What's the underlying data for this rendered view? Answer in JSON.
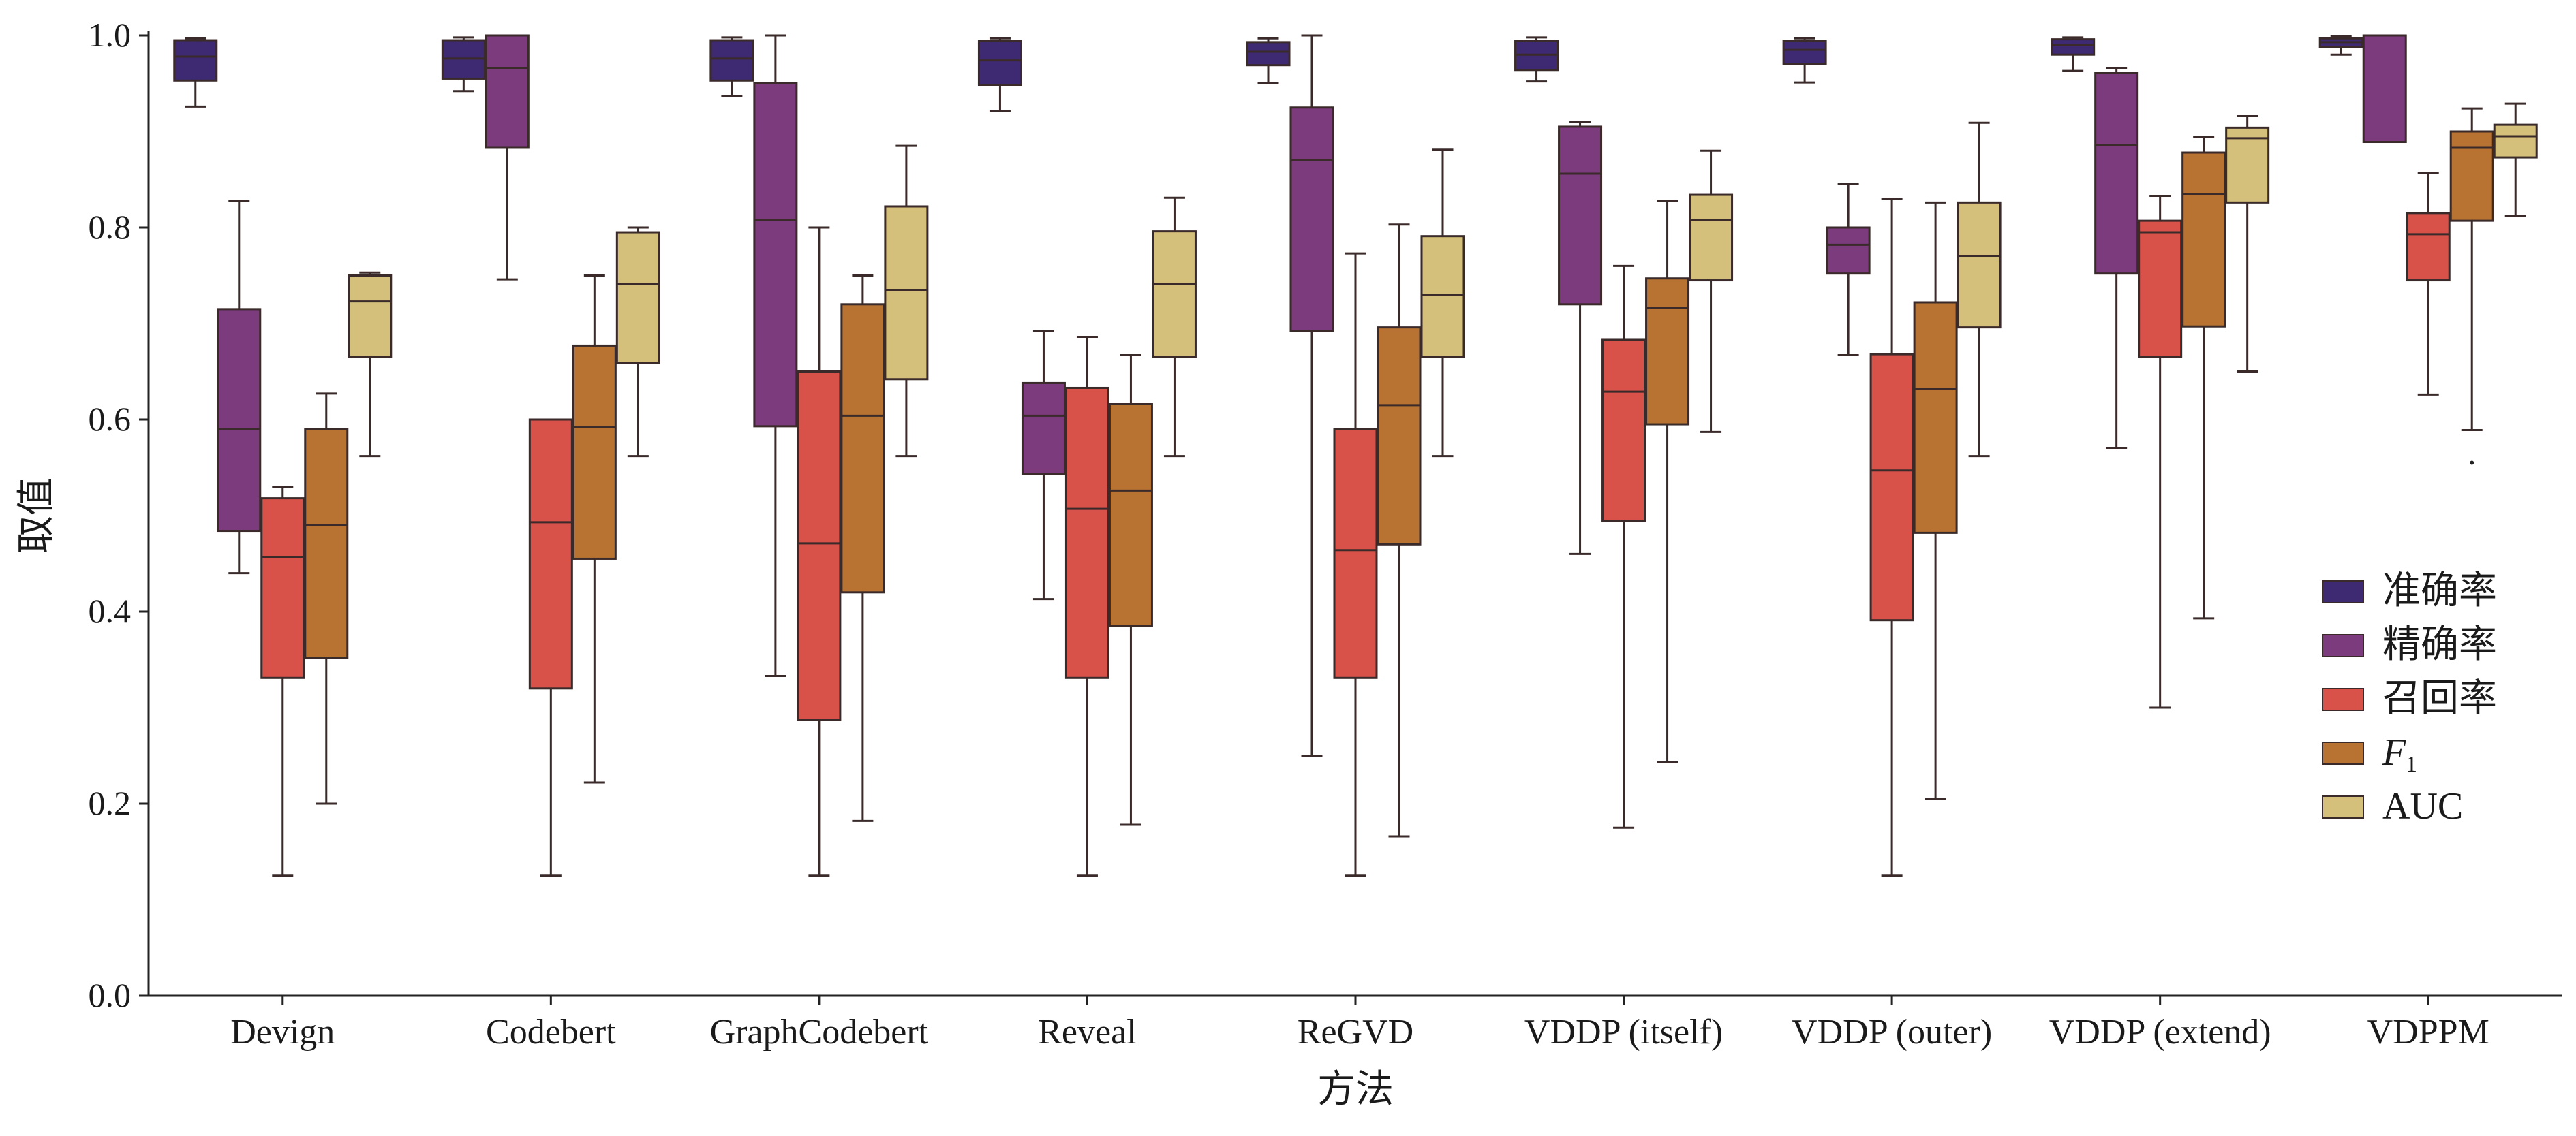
{
  "chart_data": {
    "type": "box",
    "title": "",
    "xlabel": "方法",
    "ylabel": "取值",
    "ylim": [
      0,
      1.0
    ],
    "yticks": [
      "0.0",
      "0.2",
      "0.4",
      "0.6",
      "0.8",
      "1.0"
    ],
    "ytick_values": [
      0.0,
      0.2,
      0.4,
      0.6,
      0.8,
      1.0
    ],
    "grid": false,
    "legend_position": "right",
    "categories": [
      "Devign",
      "Codebert",
      "GraphCodebert",
      "Reveal",
      "ReGVD",
      "VDDP (itself)",
      "VDDP (outer)",
      "VDDP (extend)",
      "VDPPM"
    ],
    "series": [
      {
        "name": "准确率",
        "label_main": "准确率",
        "label_sub": "",
        "color": "#3e2a73",
        "boxes": [
          {
            "min": 0.926,
            "q1": 0.953,
            "median": 0.978,
            "q3": 0.995,
            "max": 0.997
          },
          {
            "min": 0.942,
            "q1": 0.955,
            "median": 0.976,
            "q3": 0.995,
            "max": 0.998
          },
          {
            "min": 0.937,
            "q1": 0.953,
            "median": 0.976,
            "q3": 0.995,
            "max": 0.998
          },
          {
            "min": 0.921,
            "q1": 0.948,
            "median": 0.974,
            "q3": 0.994,
            "max": 0.997
          },
          {
            "min": 0.95,
            "q1": 0.969,
            "median": 0.983,
            "q3": 0.993,
            "max": 0.997
          },
          {
            "min": 0.952,
            "q1": 0.964,
            "median": 0.98,
            "q3": 0.994,
            "max": 0.998
          },
          {
            "min": 0.951,
            "q1": 0.97,
            "median": 0.985,
            "q3": 0.994,
            "max": 0.997
          },
          {
            "min": 0.963,
            "q1": 0.98,
            "median": 0.99,
            "q3": 0.996,
            "max": 0.998
          },
          {
            "min": 0.98,
            "q1": 0.988,
            "median": 0.993,
            "q3": 0.997,
            "max": 0.999
          }
        ]
      },
      {
        "name": "精确率",
        "label_main": "精确率",
        "label_sub": "",
        "color": "#7c3b7d",
        "boxes": [
          {
            "min": 0.44,
            "q1": 0.484,
            "median": 0.59,
            "q3": 0.715,
            "max": 0.828
          },
          {
            "min": 0.746,
            "q1": 0.883,
            "median": 0.966,
            "q3": 1.0,
            "max": 1.0
          },
          {
            "min": 0.333,
            "q1": 0.593,
            "median": 0.808,
            "q3": 0.95,
            "max": 1.0
          },
          {
            "min": 0.413,
            "q1": 0.543,
            "median": 0.604,
            "q3": 0.638,
            "max": 0.692
          },
          {
            "min": 0.25,
            "q1": 0.692,
            "median": 0.87,
            "q3": 0.925,
            "max": 1.0
          },
          {
            "min": 0.46,
            "q1": 0.72,
            "median": 0.856,
            "q3": 0.905,
            "max": 0.91
          },
          {
            "min": 0.667,
            "q1": 0.752,
            "median": 0.782,
            "q3": 0.8,
            "max": 0.845
          },
          {
            "min": 0.57,
            "q1": 0.752,
            "median": 0.886,
            "q3": 0.961,
            "max": 0.966
          },
          {
            "min": 0.889,
            "q1": 0.889,
            "median": 1.0,
            "q3": 1.0,
            "max": 1.0
          }
        ]
      },
      {
        "name": "召回率",
        "label_main": "召回率",
        "label_sub": "",
        "color": "#d8524a",
        "boxes": [
          {
            "min": 0.125,
            "q1": 0.331,
            "median": 0.457,
            "q3": 0.518,
            "max": 0.53
          },
          {
            "min": 0.125,
            "q1": 0.32,
            "median": 0.493,
            "q3": 0.6,
            "max": 0.6
          },
          {
            "min": 0.125,
            "q1": 0.287,
            "median": 0.471,
            "q3": 0.65,
            "max": 0.8
          },
          {
            "min": 0.125,
            "q1": 0.331,
            "median": 0.507,
            "q3": 0.633,
            "max": 0.686
          },
          {
            "min": 0.125,
            "q1": 0.331,
            "median": 0.464,
            "q3": 0.59,
            "max": 0.773
          },
          {
            "min": 0.175,
            "q1": 0.494,
            "median": 0.629,
            "q3": 0.683,
            "max": 0.76
          },
          {
            "min": 0.125,
            "q1": 0.391,
            "median": 0.547,
            "q3": 0.668,
            "max": 0.83
          },
          {
            "min": 0.3,
            "q1": 0.665,
            "median": 0.795,
            "q3": 0.807,
            "max": 0.833
          },
          {
            "min": 0.626,
            "q1": 0.745,
            "median": 0.793,
            "q3": 0.815,
            "max": 0.857
          }
        ]
      },
      {
        "name": "F1",
        "label_main": "F",
        "label_sub": "1",
        "color": "#b87333",
        "boxes": [
          {
            "min": 0.2,
            "q1": 0.352,
            "median": 0.49,
            "q3": 0.59,
            "max": 0.627
          },
          {
            "min": 0.222,
            "q1": 0.455,
            "median": 0.592,
            "q3": 0.677,
            "max": 0.75
          },
          {
            "min": 0.182,
            "q1": 0.42,
            "median": 0.604,
            "q3": 0.72,
            "max": 0.75
          },
          {
            "min": 0.178,
            "q1": 0.385,
            "median": 0.526,
            "q3": 0.616,
            "max": 0.667
          },
          {
            "min": 0.166,
            "q1": 0.47,
            "median": 0.615,
            "q3": 0.696,
            "max": 0.803
          },
          {
            "min": 0.243,
            "q1": 0.595,
            "median": 0.716,
            "q3": 0.747,
            "max": 0.828
          },
          {
            "min": 0.205,
            "q1": 0.482,
            "median": 0.632,
            "q3": 0.722,
            "max": 0.826
          },
          {
            "min": 0.393,
            "q1": 0.697,
            "median": 0.835,
            "q3": 0.878,
            "max": 0.894
          },
          {
            "min": 0.589,
            "q1": 0.807,
            "median": 0.883,
            "q3": 0.9,
            "max": 0.924,
            "outliers": [
              0.555
            ]
          }
        ]
      },
      {
        "name": "AUC",
        "label_main": "AUC",
        "label_sub": "",
        "color": "#d4c07a",
        "boxes": [
          {
            "min": 0.562,
            "q1": 0.665,
            "median": 0.723,
            "q3": 0.75,
            "max": 0.753
          },
          {
            "min": 0.562,
            "q1": 0.659,
            "median": 0.741,
            "q3": 0.795,
            "max": 0.8
          },
          {
            "min": 0.562,
            "q1": 0.642,
            "median": 0.735,
            "q3": 0.822,
            "max": 0.885
          },
          {
            "min": 0.562,
            "q1": 0.665,
            "median": 0.741,
            "q3": 0.796,
            "max": 0.831
          },
          {
            "min": 0.562,
            "q1": 0.665,
            "median": 0.73,
            "q3": 0.791,
            "max": 0.881
          },
          {
            "min": 0.587,
            "q1": 0.745,
            "median": 0.808,
            "q3": 0.834,
            "max": 0.88
          },
          {
            "min": 0.562,
            "q1": 0.696,
            "median": 0.77,
            "q3": 0.826,
            "max": 0.909
          },
          {
            "min": 0.65,
            "q1": 0.826,
            "median": 0.893,
            "q3": 0.904,
            "max": 0.916
          },
          {
            "min": 0.812,
            "q1": 0.873,
            "median": 0.895,
            "q3": 0.907,
            "max": 0.929
          }
        ]
      }
    ]
  }
}
